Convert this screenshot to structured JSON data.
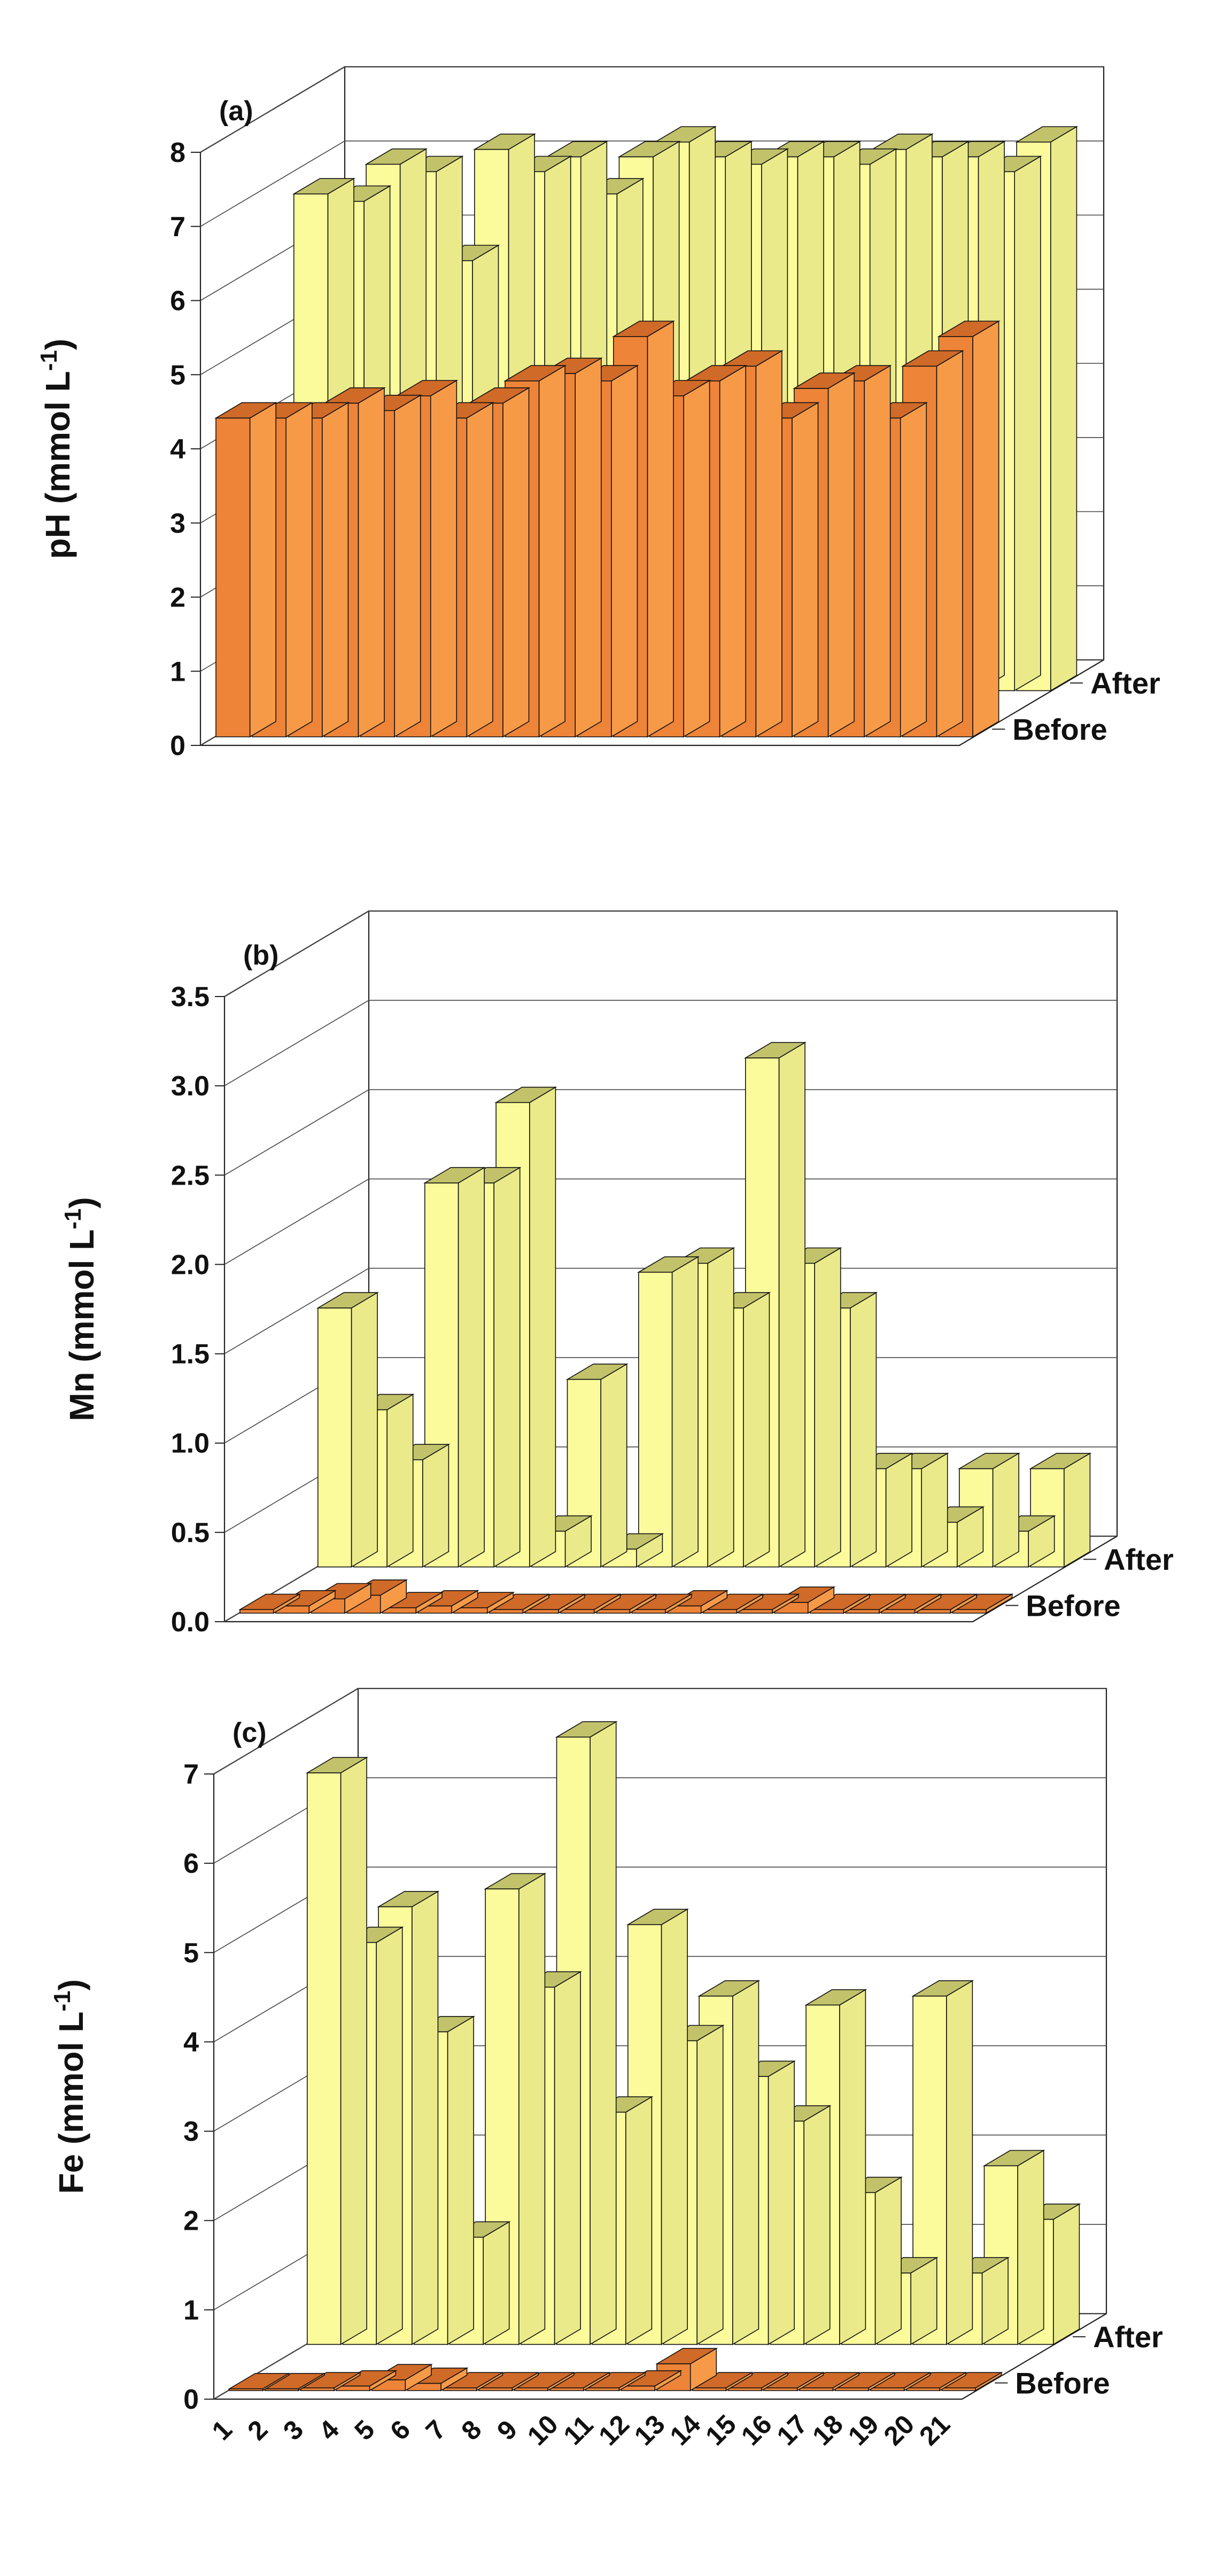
{
  "chart_data": [
    {
      "type": "bar3d",
      "panel_label": "(a)",
      "ylabel": "pH (mmol L",
      "ylabel_sup": "-1",
      "ylabel_close": ")",
      "ylim": [
        0,
        8
      ],
      "yticks": [
        "0",
        "1",
        "2",
        "3",
        "4",
        "5",
        "6",
        "7",
        "8"
      ],
      "grid": true,
      "categories": [
        "1",
        "2",
        "3",
        "4",
        "5",
        "6",
        "7",
        "8",
        "9",
        "10",
        "11",
        "12",
        "13",
        "14",
        "15",
        "16",
        "17",
        "18",
        "19",
        "20",
        "21"
      ],
      "series": [
        {
          "name": "Before",
          "values": [
            4.3,
            4.3,
            4.3,
            4.5,
            4.4,
            4.6,
            4.3,
            4.5,
            4.8,
            4.9,
            4.8,
            5.4,
            4.6,
            4.8,
            5.0,
            4.3,
            4.7,
            4.8,
            4.3,
            5.0,
            5.4
          ]
        },
        {
          "name": "After",
          "values": [
            6.7,
            6.6,
            7.1,
            7.0,
            5.8,
            7.3,
            7.0,
            7.2,
            6.7,
            7.2,
            7.4,
            7.2,
            7.1,
            7.2,
            7.2,
            7.1,
            7.3,
            7.2,
            7.2,
            7.0,
            7.4
          ]
        }
      ]
    },
    {
      "type": "bar3d",
      "panel_label": "(b)",
      "ylabel": "Mn (mmol L",
      "ylabel_sup": "-1",
      "ylabel_close": ")",
      "ylim": [
        0,
        3.5
      ],
      "yticks": [
        "0.0",
        "0.5",
        "1.0",
        "1.5",
        "2.0",
        "2.5",
        "3.0",
        "3.5"
      ],
      "grid": true,
      "categories": [
        "1",
        "2",
        "3",
        "4",
        "5",
        "6",
        "7",
        "8",
        "9",
        "10",
        "11",
        "12",
        "13",
        "14",
        "15",
        "16",
        "17",
        "18",
        "19",
        "20",
        "21"
      ],
      "series": [
        {
          "name": "Before",
          "values": [
            0.02,
            0.04,
            0.08,
            0.1,
            0.03,
            0.04,
            0.03,
            0.02,
            0.02,
            0.02,
            0.02,
            0.02,
            0.04,
            0.02,
            0.02,
            0.06,
            0.02,
            0.02,
            0.02,
            0.02,
            0.02
          ]
        },
        {
          "name": "After",
          "values": [
            1.45,
            0.88,
            0.6,
            2.15,
            2.15,
            2.6,
            0.2,
            1.05,
            0.1,
            1.65,
            1.7,
            1.45,
            2.85,
            1.7,
            1.45,
            0.55,
            0.55,
            0.25,
            0.55,
            0.2,
            0.55
          ]
        }
      ]
    },
    {
      "type": "bar3d",
      "panel_label": "(c)",
      "ylabel": "Fe (mmol L",
      "ylabel_sup": "-1",
      "ylabel_close": ")",
      "ylim": [
        0,
        7
      ],
      "yticks": [
        "0",
        "1",
        "2",
        "3",
        "4",
        "5",
        "6",
        "7"
      ],
      "grid": true,
      "categories": [
        "1",
        "2",
        "3",
        "4",
        "5",
        "6",
        "7",
        "8",
        "9",
        "10",
        "11",
        "12",
        "13",
        "14",
        "15",
        "16",
        "17",
        "18",
        "19",
        "20",
        "21"
      ],
      "series": [
        {
          "name": "Before",
          "values": [
            0.02,
            0.02,
            0.03,
            0.05,
            0.12,
            0.08,
            0.03,
            0.03,
            0.03,
            0.03,
            0.03,
            0.05,
            0.3,
            0.03,
            0.03,
            0.03,
            0.03,
            0.03,
            0.03,
            0.03,
            0.03
          ]
        },
        {
          "name": "After",
          "values": [
            6.4,
            4.5,
            4.9,
            3.5,
            1.2,
            5.1,
            4.0,
            6.8,
            2.6,
            4.7,
            3.4,
            3.9,
            3.0,
            2.5,
            3.8,
            1.7,
            0.8,
            3.9,
            0.8,
            2.0,
            1.4
          ]
        }
      ]
    }
  ]
}
